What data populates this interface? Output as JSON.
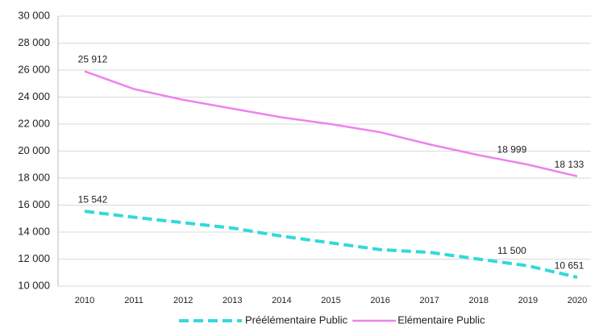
{
  "chart_data": {
    "type": "line",
    "categories": [
      "2010",
      "2011",
      "2012",
      "2013",
      "2014",
      "2015",
      "2016",
      "2017",
      "2018",
      "2019",
      "2020"
    ],
    "series": [
      {
        "name": "Préélémentaire Public",
        "color": "#33d9d9",
        "dashed": true,
        "values": [
          15542,
          15100,
          14700,
          14300,
          13700,
          13200,
          12700,
          12500,
          12000,
          11500,
          10651
        ],
        "value_labels": [
          "15 542",
          null,
          null,
          null,
          null,
          null,
          null,
          null,
          null,
          "11 500",
          "10 651"
        ]
      },
      {
        "name": "Elémentaire Public",
        "color": "#ee82ee",
        "dashed": false,
        "values": [
          25912,
          24600,
          23800,
          23150,
          22500,
          22000,
          21400,
          20500,
          19700,
          18999,
          18133
        ],
        "value_labels": [
          "25 912",
          null,
          null,
          null,
          null,
          null,
          null,
          null,
          null,
          "18 999",
          "18 133"
        ]
      }
    ],
    "ylim": [
      10000,
      30000
    ],
    "yticks": [
      {
        "value": 10000,
        "label": "10 000"
      },
      {
        "value": 12000,
        "label": "12 000"
      },
      {
        "value": 14000,
        "label": "14 000"
      },
      {
        "value": 16000,
        "label": "16 000"
      },
      {
        "value": 18000,
        "label": "18 000"
      },
      {
        "value": 20000,
        "label": "20 000"
      },
      {
        "value": 22000,
        "label": "22 000"
      },
      {
        "value": 24000,
        "label": "24 000"
      },
      {
        "value": 26000,
        "label": "26 000"
      },
      {
        "value": 28000,
        "label": "28 000"
      },
      {
        "value": 30000,
        "label": "30 000"
      }
    ],
    "grid": true,
    "legend": "bottom"
  }
}
